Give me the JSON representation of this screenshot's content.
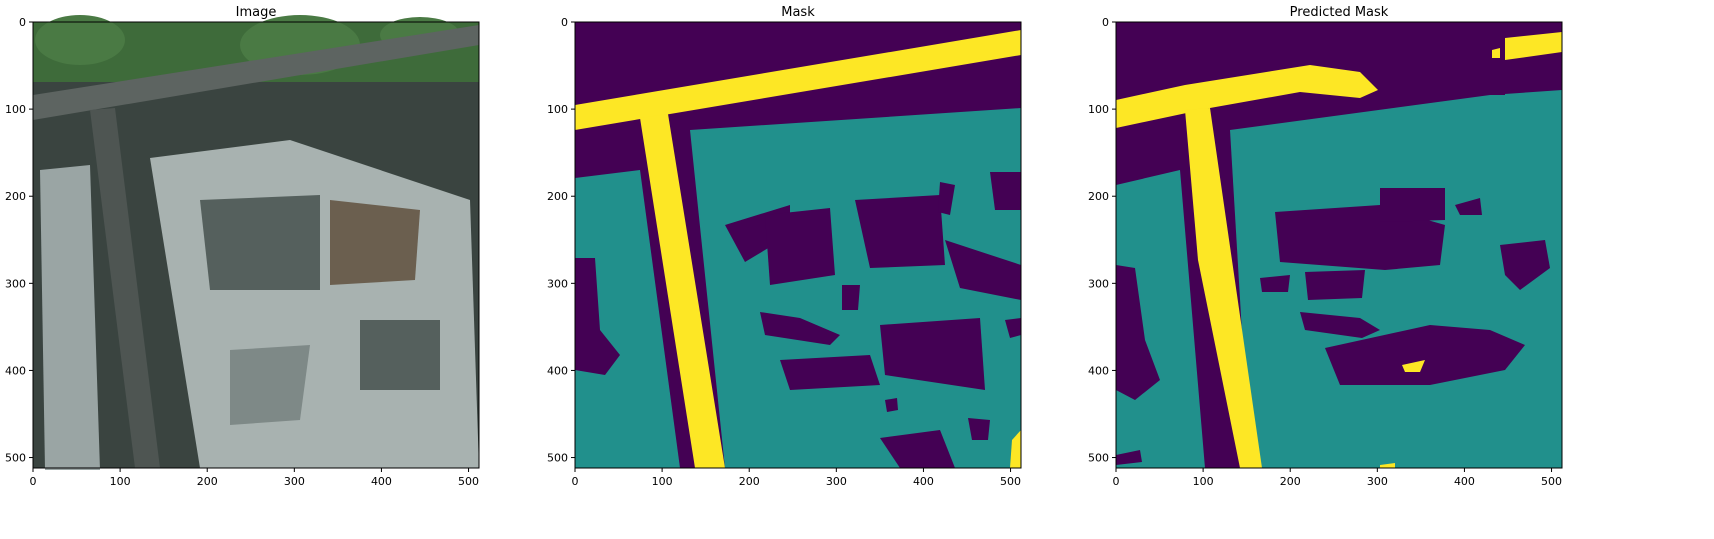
{
  "colors": {
    "background": "#440154",
    "building": "#21908C",
    "road": "#FDE725",
    "photo_base": "#3a4440",
    "photo_roof": "#a8b2b0",
    "photo_tree": "#3e6b3a"
  },
  "panels": [
    {
      "key": "image",
      "title": "Image"
    },
    {
      "key": "mask",
      "title": "Mask"
    },
    {
      "key": "pred",
      "title": "Predicted Mask"
    }
  ],
  "axis": {
    "x_ticks": [
      "0",
      "100",
      "200",
      "300",
      "400",
      "500"
    ],
    "y_ticks": [
      "0",
      "100",
      "200",
      "300",
      "400",
      "500"
    ],
    "range": [
      0,
      512
    ]
  }
}
